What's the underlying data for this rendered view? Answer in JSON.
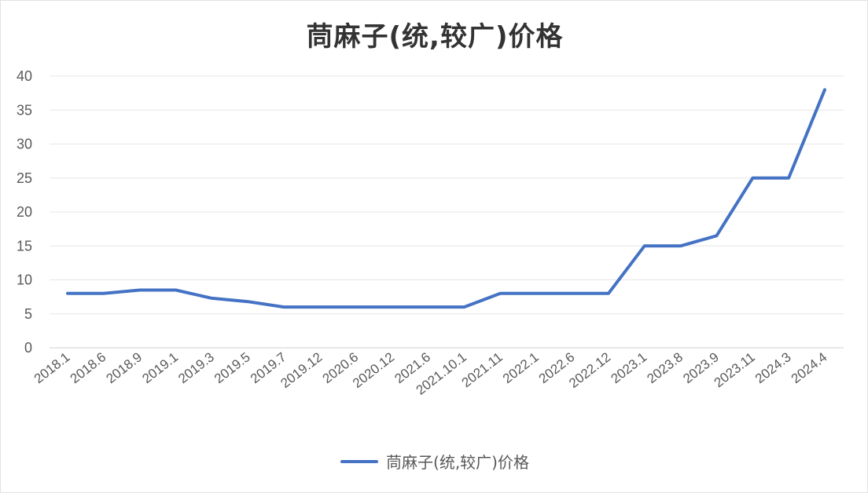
{
  "chart_data": {
    "type": "line",
    "title": "茼麻子(统,较广)价格",
    "xlabel": "",
    "ylabel": "",
    "categories": [
      "2018.1",
      "2018.6",
      "2018.9",
      "2019.1",
      "2019.3",
      "2019.5",
      "2019.7",
      "2019.12",
      "2020.6",
      "2020.12",
      "2021.6",
      "2021.10.1",
      "2021.11",
      "2022.1",
      "2022.6",
      "2022.12",
      "2023.1",
      "2023.8",
      "2023.9",
      "2023.11",
      "2024.3",
      "2024.4"
    ],
    "series": [
      {
        "name": "茼麻子(统,较广)价格",
        "color": "#4472c4",
        "values": [
          8,
          8,
          8.5,
          8.5,
          7.3,
          6.8,
          6,
          6,
          6,
          6,
          6,
          6,
          8,
          8,
          8,
          8,
          15,
          15,
          16.5,
          25,
          25,
          38
        ]
      }
    ],
    "ylim": [
      0,
      40
    ],
    "yticks": [
      "0",
      "5",
      "10",
      "15",
      "20",
      "25",
      "30",
      "35",
      "40"
    ],
    "grid": true,
    "legend": "bottom"
  }
}
